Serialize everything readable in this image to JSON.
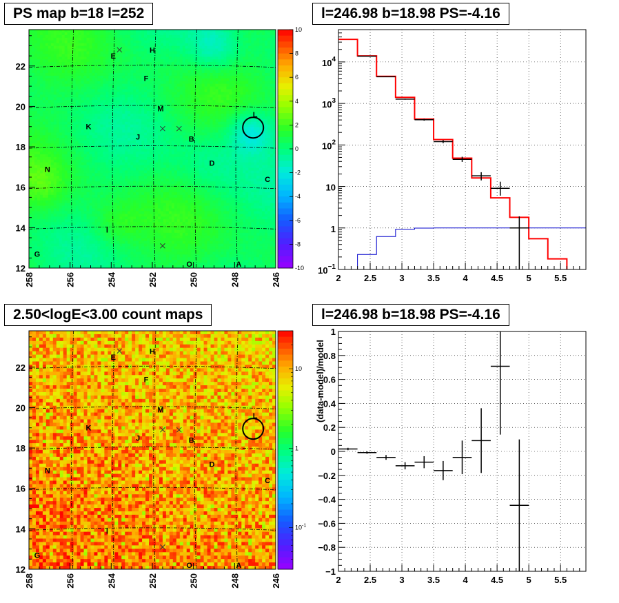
{
  "chart_data": [
    {
      "type": "heatmap",
      "title": "PS map b=18 l=252",
      "x_ticks": [
        "258",
        "256",
        "254",
        "252",
        "250",
        "248",
        "246"
      ],
      "y_ticks": [
        "12",
        "14",
        "16",
        "18",
        "20",
        "22"
      ],
      "xlim": [
        258,
        246
      ],
      "ylim": [
        12,
        23.8
      ],
      "colorbar_ticks": [
        "10",
        "8",
        "6",
        "4",
        "2",
        "0",
        "-2",
        "-4",
        "-6",
        "-8",
        "-10"
      ],
      "colorbar_range": [
        -10,
        10
      ],
      "sources": [
        {
          "label": "E",
          "l": 253.9,
          "b": 22.5
        },
        {
          "label": "H",
          "l": 252.0,
          "b": 22.8
        },
        {
          "label": "F",
          "l": 252.3,
          "b": 21.4
        },
        {
          "label": "M",
          "l": 251.6,
          "b": 19.9
        },
        {
          "label": "L",
          "l": 247.0,
          "b": 19.6
        },
        {
          "label": "K",
          "l": 255.1,
          "b": 19.0
        },
        {
          "label": "J",
          "l": 252.7,
          "b": 18.5
        },
        {
          "label": "B",
          "l": 250.1,
          "b": 18.4
        },
        {
          "label": "D",
          "l": 249.1,
          "b": 17.2
        },
        {
          "label": "N",
          "l": 257.1,
          "b": 16.9
        },
        {
          "label": "C",
          "l": 246.4,
          "b": 16.4
        },
        {
          "label": "I",
          "l": 254.2,
          "b": 13.9
        },
        {
          "label": "G",
          "l": 257.6,
          "b": 12.7
        },
        {
          "label": "O",
          "l": 250.2,
          "b": 12.2
        },
        {
          "label": "A",
          "l": 247.8,
          "b": 12.2
        }
      ],
      "crosses": [
        {
          "l": 253.6,
          "b": 22.8
        },
        {
          "l": 251.5,
          "b": 18.9
        },
        {
          "l": 250.7,
          "b": 18.9
        },
        {
          "l": 251.5,
          "b": 13.1
        }
      ],
      "circle": {
        "l": 247.1,
        "b": 18.95
      }
    },
    {
      "type": "line",
      "title": "l=246.98 b=18.98 PS=-4.16",
      "x_ticks": [
        "2",
        "2.5",
        "3",
        "3.5",
        "4",
        "4.5",
        "5",
        "5.5"
      ],
      "y_ticks": [
        "10^-1",
        "1",
        "10",
        "10^2",
        "10^3",
        "10^4"
      ],
      "y_tick_labels": [
        {
          "base": "10",
          "exp": "−1"
        },
        {
          "base": "1",
          "exp": ""
        },
        {
          "base": "10",
          "exp": ""
        },
        {
          "base": "10",
          "exp": "2"
        },
        {
          "base": "10",
          "exp": "3"
        },
        {
          "base": "10",
          "exp": "4"
        }
      ],
      "xlim": [
        2,
        5.9
      ],
      "ylim": [
        0.1,
        60000
      ],
      "log_y": true,
      "grid": true,
      "bin_edges": [
        2.0,
        2.3,
        2.6,
        2.9,
        3.2,
        3.5,
        3.8,
        4.1,
        4.4,
        4.7,
        5.0,
        5.3,
        5.6,
        5.9
      ],
      "series": [
        {
          "color": "#ff0000",
          "values": [
            35000,
            14000,
            4500,
            1400,
            420,
            135,
            48,
            16,
            5.3,
            1.8,
            0.55,
            0.18,
            0.06
          ]
        },
        {
          "color": "#0000cc",
          "values": [
            0.05,
            0.23,
            0.62,
            0.93,
            0.99,
            1.0,
            1.0,
            1.0,
            1.0,
            1.0,
            1.0,
            1.0,
            1.0
          ]
        },
        {
          "color": "#000000",
          "points": [
            {
              "x": 2.45,
              "y": 13800,
              "lo": 13600,
              "hi": 14000
            },
            {
              "x": 2.75,
              "y": 4400,
              "lo": 4300,
              "hi": 4500
            },
            {
              "x": 3.05,
              "y": 1270,
              "lo": 1230,
              "hi": 1310
            },
            {
              "x": 3.35,
              "y": 405,
              "lo": 385,
              "hi": 425
            },
            {
              "x": 3.65,
              "y": 120,
              "lo": 110,
              "hi": 131
            },
            {
              "x": 3.95,
              "y": 45,
              "lo": 39,
              "hi": 52
            },
            {
              "x": 4.25,
              "y": 18,
              "lo": 14,
              "hi": 22
            },
            {
              "x": 4.55,
              "y": 9,
              "lo": 6,
              "hi": 13
            },
            {
              "x": 4.85,
              "y": 1.0,
              "lo": 0.08,
              "hi": 1.9
            }
          ]
        }
      ]
    },
    {
      "type": "heatmap",
      "title": "2.50<logE<3.00 count maps",
      "x_ticks": [
        "258",
        "256",
        "254",
        "252",
        "250",
        "248",
        "246"
      ],
      "y_ticks": [
        "12",
        "14",
        "16",
        "18",
        "20",
        "22"
      ],
      "xlim": [
        258,
        246
      ],
      "ylim": [
        12,
        23.8
      ],
      "colorbar_ticks": [
        "10",
        "1",
        "10^-1"
      ],
      "colorbar_tick_labels": [
        {
          "base": "10",
          "exp": ""
        },
        {
          "base": "1",
          "exp": ""
        },
        {
          "base": "10",
          "exp": "-1"
        }
      ],
      "colorbar_log_range": [
        0.03,
        30
      ]
    },
    {
      "type": "scatter",
      "title": "l=246.98 b=18.98 PS=-4.16",
      "ylabel": "(data-model)/model",
      "x_ticks": [
        "2",
        "2.5",
        "3",
        "3.5",
        "4",
        "4.5",
        "5",
        "5.5"
      ],
      "y_ticks": [
        "-1",
        "-0.8",
        "-0.6",
        "-0.4",
        "-0.2",
        "0",
        "0.2",
        "0.4",
        "0.6",
        "0.8",
        "1"
      ],
      "xlim": [
        2,
        5.9
      ],
      "ylim": [
        -1,
        1
      ],
      "grid": true,
      "points": [
        {
          "x": 2.15,
          "y": 0.02,
          "ex": 0.15,
          "ey": 0.01
        },
        {
          "x": 2.45,
          "y": -0.01,
          "ex": 0.15,
          "ey": 0.01
        },
        {
          "x": 2.75,
          "y": -0.05,
          "ex": 0.15,
          "ey": 0.02
        },
        {
          "x": 3.05,
          "y": -0.12,
          "ex": 0.15,
          "ey": 0.03
        },
        {
          "x": 3.35,
          "y": -0.09,
          "ex": 0.15,
          "ey": 0.05
        },
        {
          "x": 3.65,
          "y": -0.16,
          "ex": 0.15,
          "ey": 0.08
        },
        {
          "x": 3.95,
          "y": -0.05,
          "ex": 0.15,
          "ey": 0.14
        },
        {
          "x": 4.25,
          "y": 0.09,
          "ex": 0.15,
          "ey": 0.27
        },
        {
          "x": 4.55,
          "y": 0.71,
          "ex": 0.15,
          "ey": 0.57
        },
        {
          "x": 4.85,
          "y": -0.45,
          "ex": 0.15,
          "ey": 0.55
        }
      ]
    }
  ]
}
